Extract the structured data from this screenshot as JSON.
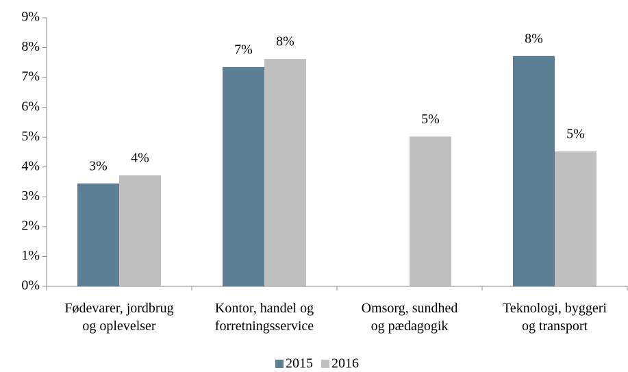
{
  "chart_data": {
    "type": "bar",
    "categories": [
      "Fødevarer, jordbrug\nog oplevelser",
      "Kontor, handel og\nforretningsservice",
      "Omsorg, sundhed\nog pædagogik",
      "Teknologi, byggeri\nog transport"
    ],
    "series": [
      {
        "name": "2015",
        "color": "#5b7f95",
        "values": [
          3.45,
          7.35,
          null,
          7.72
        ],
        "value_labels": [
          "3%",
          "7%",
          null,
          "8%"
        ]
      },
      {
        "name": "2016",
        "color": "#bfbfbf",
        "values": [
          3.72,
          7.62,
          5.02,
          4.52
        ],
        "value_labels": [
          "4%",
          "8%",
          "5%",
          "5%"
        ]
      }
    ],
    "ylim": [
      0,
      9
    ],
    "yticks": [
      {
        "value": 0,
        "label": "0%"
      },
      {
        "value": 1,
        "label": "1%"
      },
      {
        "value": 2,
        "label": "2%"
      },
      {
        "value": 3,
        "label": "3%"
      },
      {
        "value": 4,
        "label": "4%"
      },
      {
        "value": 5,
        "label": "5%"
      },
      {
        "value": 6,
        "label": "6%"
      },
      {
        "value": 7,
        "label": "7%"
      },
      {
        "value": 8,
        "label": "8%"
      },
      {
        "value": 9,
        "label": "9%"
      }
    ],
    "grid": false,
    "legend": "bottom"
  }
}
